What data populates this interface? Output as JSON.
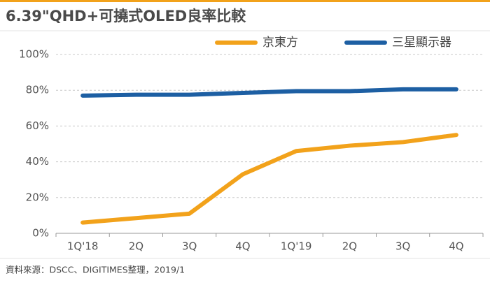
{
  "chart_data": {
    "type": "line",
    "title": "6.39\"QHD+可撓式OLED良率比較",
    "note": "資料來源：DSCC、DIGITIMES整理，2019/1",
    "categories": [
      "1Q'18",
      "2Q",
      "3Q",
      "4Q",
      "1Q'19",
      "2Q",
      "3Q",
      "4Q"
    ],
    "series": [
      {
        "name": "京東方",
        "color": "#f2a21b",
        "values": [
          6,
          8.5,
          11,
          33,
          46,
          49,
          51,
          55
        ]
      },
      {
        "name": "三星顯示器",
        "color": "#1d5fa3",
        "values": [
          77,
          77.5,
          77.5,
          78.5,
          79.5,
          79.5,
          80.5,
          80.5
        ]
      }
    ],
    "ylim": [
      0,
      100
    ],
    "yticks": [
      {
        "value": 0,
        "label": "0%"
      },
      {
        "value": 20,
        "label": "20%"
      },
      {
        "value": 40,
        "label": "40%"
      },
      {
        "value": 60,
        "label": "60%"
      },
      {
        "value": 80,
        "label": "80%"
      },
      {
        "value": 100,
        "label": "100%"
      }
    ],
    "grid": true
  }
}
